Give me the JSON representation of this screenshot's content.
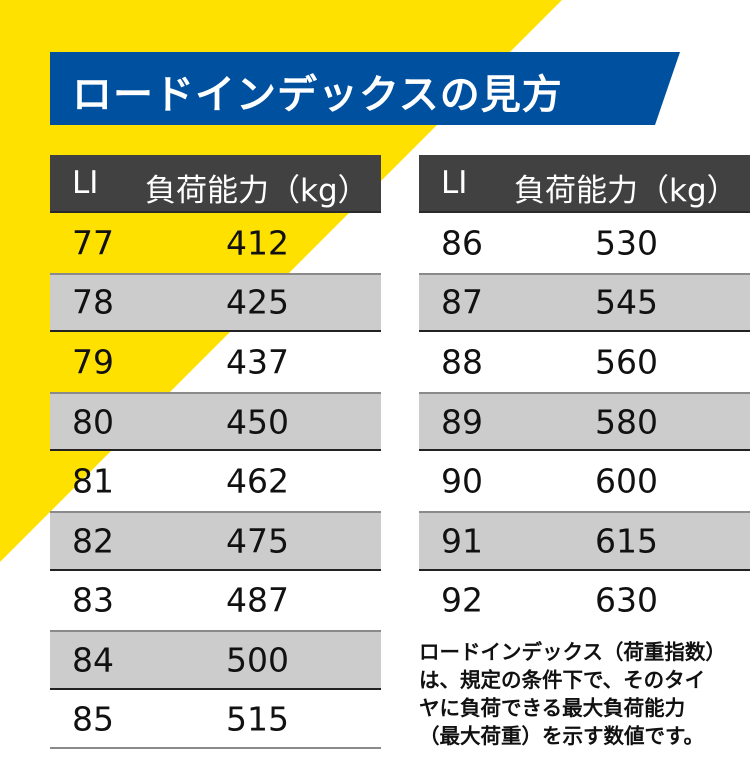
{
  "colors": {
    "yellow": "#ffe100",
    "blue": "#0050a0",
    "header": "#414141",
    "stripe": "#cccccc"
  },
  "title": "ロードインデックスの見方",
  "headers": {
    "li": "LI",
    "load": "負荷能力（kg）"
  },
  "left_rows": [
    {
      "li": "77",
      "load": "412"
    },
    {
      "li": "78",
      "load": "425"
    },
    {
      "li": "79",
      "load": "437"
    },
    {
      "li": "80",
      "load": "450"
    },
    {
      "li": "81",
      "load": "462"
    },
    {
      "li": "82",
      "load": "475"
    },
    {
      "li": "83",
      "load": "487"
    },
    {
      "li": "84",
      "load": "500"
    },
    {
      "li": "85",
      "load": "515"
    }
  ],
  "right_rows": [
    {
      "li": "86",
      "load": "530"
    },
    {
      "li": "87",
      "load": "545"
    },
    {
      "li": "88",
      "load": "560"
    },
    {
      "li": "89",
      "load": "580"
    },
    {
      "li": "90",
      "load": "600"
    },
    {
      "li": "91",
      "load": "615"
    },
    {
      "li": "92",
      "load": "630"
    }
  ],
  "note": [
    "ロードインデックス（荷重指数）",
    "は、規定の条件下で、そのタイ",
    "ヤに負荷できる最大負荷能力",
    "（最大荷重）を示す数値です。"
  ]
}
